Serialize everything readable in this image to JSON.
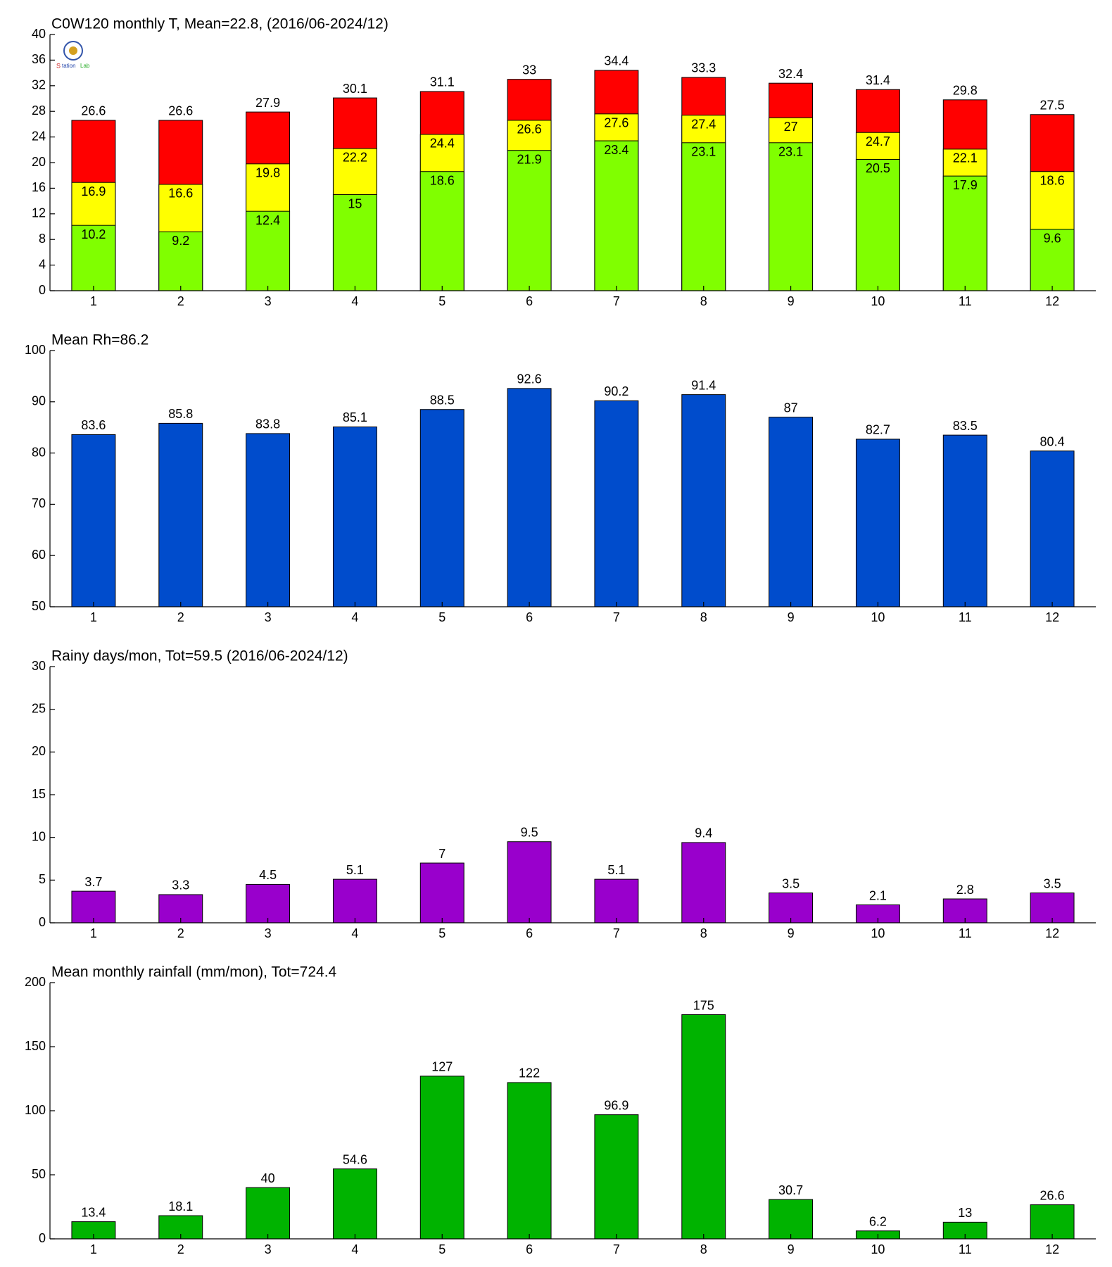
{
  "chart_data": [
    {
      "type": "overlap-bar",
      "title": "C0W120 monthly T, Mean=22.8, (2016/06-2024/12)",
      "categories": [
        "1",
        "2",
        "3",
        "4",
        "5",
        "6",
        "7",
        "8",
        "9",
        "10",
        "11",
        "12"
      ],
      "series": [
        {
          "color": "#ff0000",
          "values": [
            26.6,
            26.6,
            27.9,
            30.1,
            31.1,
            33,
            34.4,
            33.3,
            32.4,
            31.4,
            29.8,
            27.5
          ]
        },
        {
          "color": "#ffff00",
          "values": [
            16.9,
            16.6,
            19.8,
            22.2,
            24.4,
            26.6,
            27.6,
            27.4,
            27,
            24.7,
            22.1,
            18.6
          ]
        },
        {
          "color": "#80ff00",
          "values": [
            10.2,
            9.2,
            12.4,
            15,
            18.6,
            21.9,
            23.4,
            23.1,
            23.1,
            20.5,
            17.9,
            9.6
          ]
        }
      ],
      "ylim": [
        0,
        40
      ],
      "yticks": [
        0,
        4,
        8,
        12,
        16,
        20,
        24,
        28,
        32,
        36,
        40
      ]
    },
    {
      "type": "bar",
      "title": "Mean Rh=86.2",
      "categories": [
        "1",
        "2",
        "3",
        "4",
        "5",
        "6",
        "7",
        "8",
        "9",
        "10",
        "11",
        "12"
      ],
      "values": [
        83.6,
        85.8,
        83.8,
        85.1,
        88.5,
        92.6,
        90.2,
        91.4,
        87,
        82.7,
        83.5,
        80.4
      ],
      "color": "#004ccc",
      "ylim": [
        50,
        100
      ],
      "yticks": [
        50,
        60,
        70,
        80,
        90,
        100
      ]
    },
    {
      "type": "bar",
      "title": "Rainy days/mon, Tot=59.5 (2016/06-2024/12)",
      "categories": [
        "1",
        "2",
        "3",
        "4",
        "5",
        "6",
        "7",
        "8",
        "9",
        "10",
        "11",
        "12"
      ],
      "values": [
        3.7,
        3.3,
        4.5,
        5.1,
        7,
        9.5,
        5.1,
        9.4,
        3.5,
        2.1,
        2.8,
        3.5
      ],
      "color": "#9900cc",
      "ylim": [
        0,
        30
      ],
      "yticks": [
        0,
        5,
        10,
        15,
        20,
        25,
        30
      ]
    },
    {
      "type": "bar",
      "title": "Mean monthly rainfall (mm/mon), Tot=724.4",
      "categories": [
        "1",
        "2",
        "3",
        "4",
        "5",
        "6",
        "7",
        "8",
        "9",
        "10",
        "11",
        "12"
      ],
      "values": [
        13.4,
        18.1,
        40,
        54.6,
        127,
        122,
        96.9,
        175,
        30.7,
        6.2,
        13,
        26.6
      ],
      "color": "#00b300",
      "ylim": [
        0,
        200
      ],
      "yticks": [
        0,
        50,
        100,
        150,
        200
      ]
    }
  ]
}
